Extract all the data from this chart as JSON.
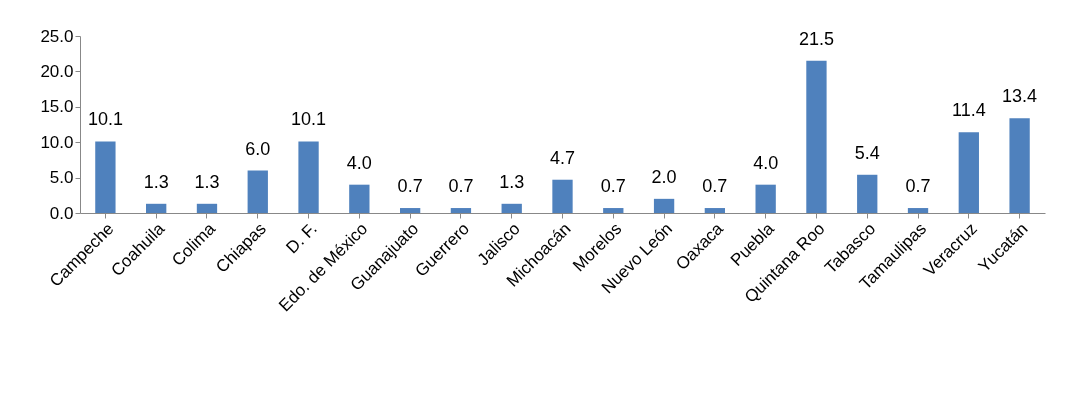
{
  "chart_data": {
    "type": "bar",
    "categories": [
      "Campeche",
      "Coahuila",
      "Colima",
      "Chiapas",
      "D. F.",
      "Edo. de México",
      "Guanajuato",
      "Guerrero",
      "Jalisco",
      "Michoacán",
      "Morelos",
      "Nuevo León",
      "Oaxaca",
      "Puebla",
      "Quintana Roo",
      "Tabasco",
      "Tamaulipas",
      "Veracruz",
      "Yucatán"
    ],
    "values": [
      10.1,
      1.3,
      1.3,
      6.0,
      10.1,
      4.0,
      0.7,
      0.7,
      1.3,
      4.7,
      0.7,
      2.0,
      0.7,
      4.0,
      21.5,
      5.4,
      0.7,
      11.4,
      13.4
    ],
    "value_labels": [
      "10.1",
      "1.3",
      "1.3",
      "6.0",
      "10.1",
      "4.0",
      "0.7",
      "0.7",
      "1.3",
      "4.7",
      "0.7",
      "2.0",
      "0.7",
      "4.0",
      "21.5",
      "5.4",
      "0.7",
      "11.4",
      "13.4"
    ],
    "color": "#4f81bd",
    "ylim": [
      0,
      25
    ],
    "yticks": [
      {
        "value": 0,
        "label": "0.0"
      },
      {
        "value": 5,
        "label": "5.0"
      },
      {
        "value": 10,
        "label": "10.0"
      },
      {
        "value": 15,
        "label": "15.0"
      },
      {
        "value": 20,
        "label": "20.0"
      },
      {
        "value": 25,
        "label": "25.0"
      }
    ],
    "grid": false
  }
}
